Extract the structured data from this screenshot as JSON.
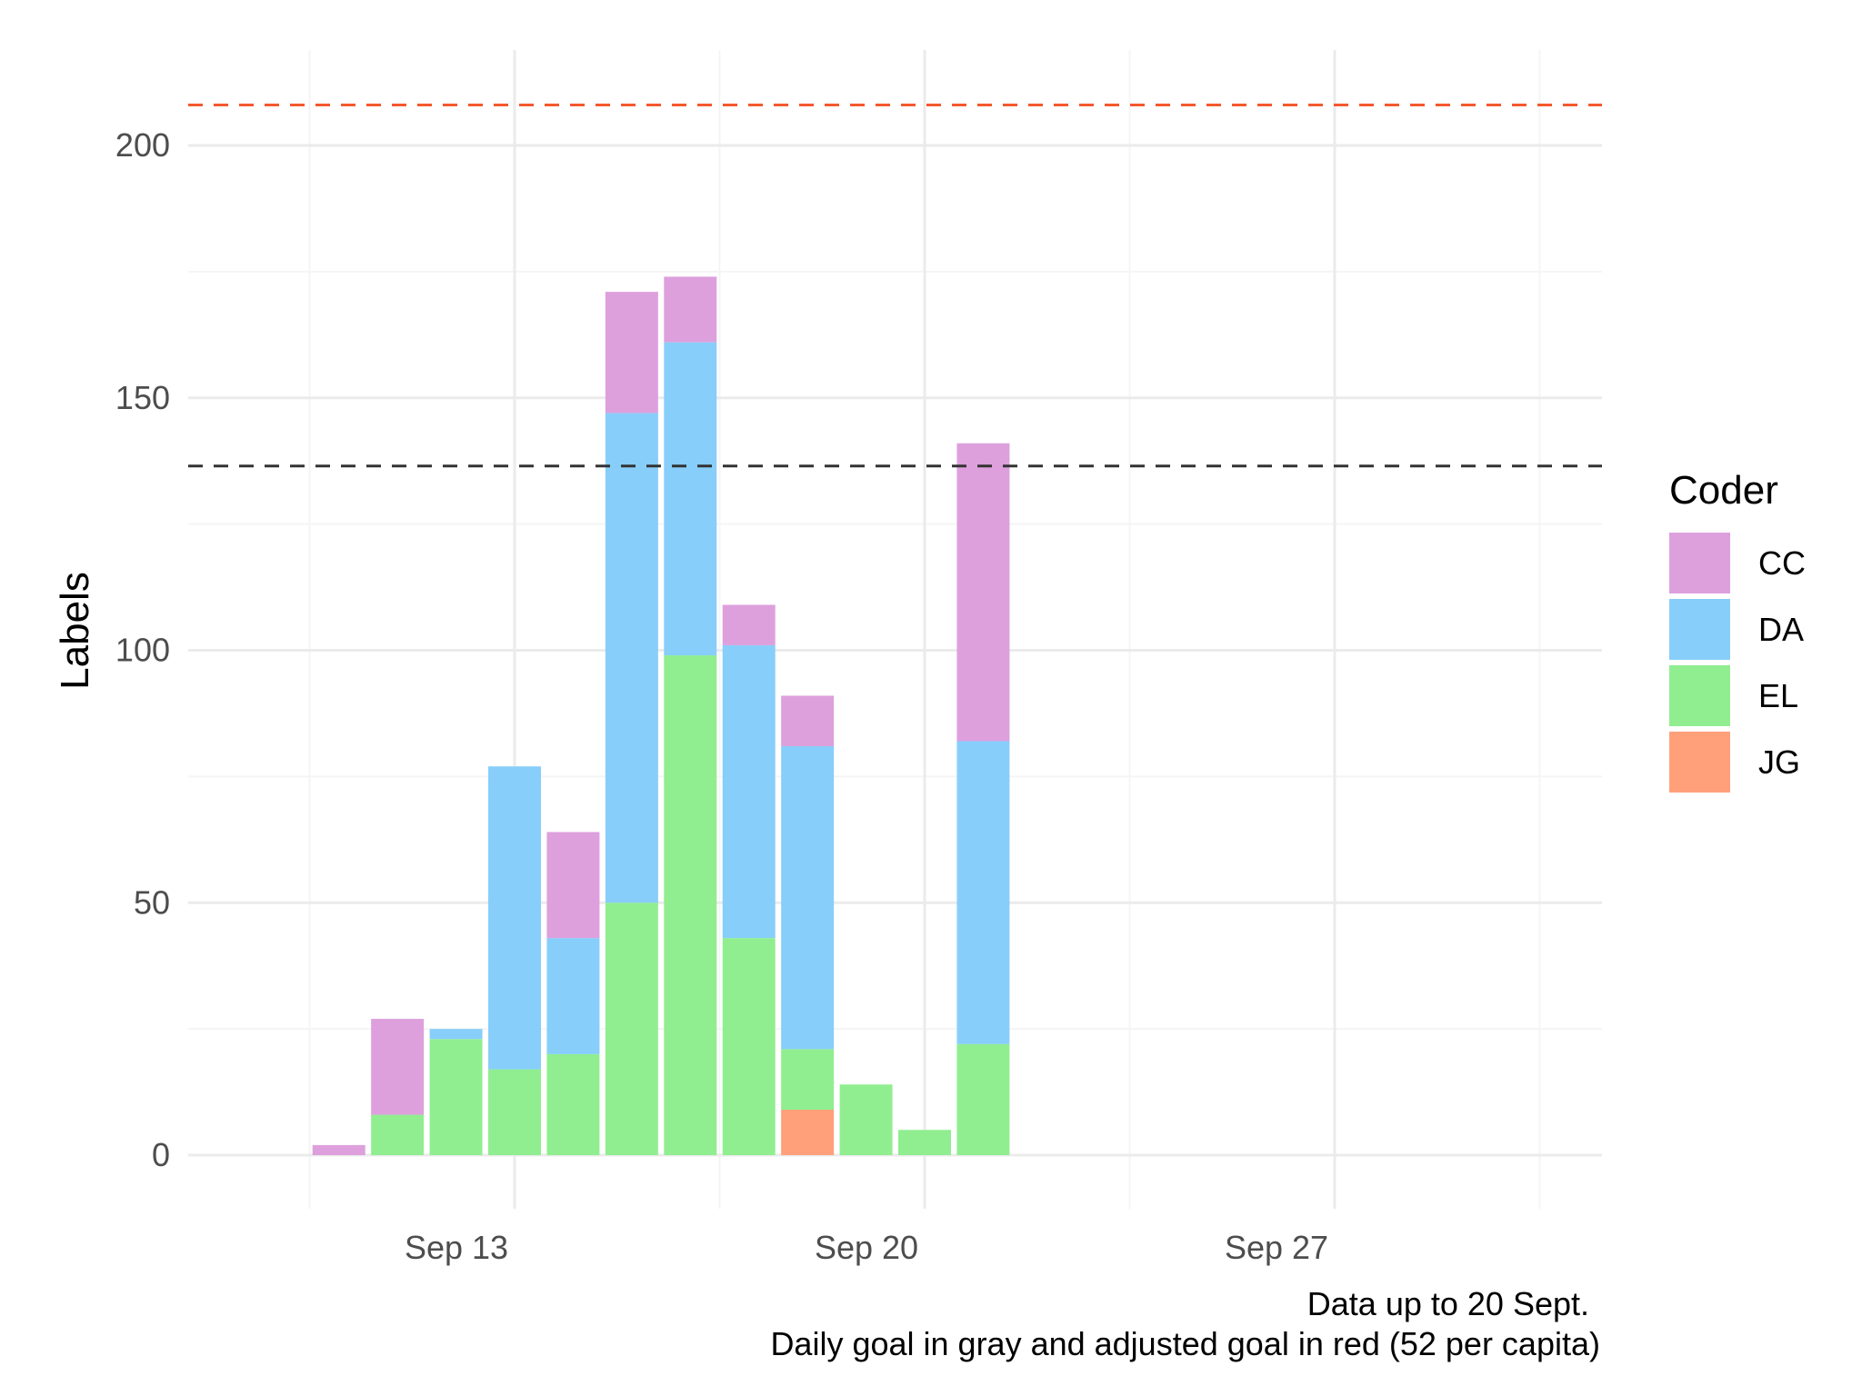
{
  "chart_data": {
    "type": "bar",
    "stacked": true,
    "ylabel": "Labels",
    "xlabel": "",
    "ylim": [
      -10,
      215
    ],
    "yticks": [
      0,
      50,
      100,
      150,
      200
    ],
    "x_axis": {
      "start_date": "2020-09-09",
      "end_date": "2020-09-30",
      "tick_dates": [
        "2020-09-13",
        "2020-09-20",
        "2020-09-27"
      ],
      "tick_labels": [
        "Sep 13",
        "Sep 20",
        "Sep 27"
      ]
    },
    "dates": [
      "2020-09-10",
      "2020-09-11",
      "2020-09-12",
      "2020-09-13",
      "2020-09-14",
      "2020-09-15",
      "2020-09-16",
      "2020-09-17",
      "2020-09-18",
      "2020-09-19",
      "2020-09-20",
      "2020-09-21"
    ],
    "series": [
      {
        "name": "JG",
        "color": "#FFA07A",
        "values": [
          0,
          0,
          0,
          0,
          0,
          0,
          0,
          0,
          9,
          0,
          0,
          0
        ]
      },
      {
        "name": "EL",
        "color": "#90EE90",
        "values": [
          0,
          8,
          23,
          17,
          20,
          50,
          99,
          43,
          12,
          14,
          5,
          22
        ]
      },
      {
        "name": "DA",
        "color": "#87CEFA",
        "values": [
          0,
          0,
          2,
          60,
          23,
          97,
          62,
          58,
          60,
          0,
          0,
          60
        ]
      },
      {
        "name": "CC",
        "color": "#DDA0DD",
        "values": [
          2,
          19,
          0,
          0,
          21,
          24,
          13,
          8,
          10,
          0,
          0,
          59
        ]
      }
    ],
    "reference_lines": [
      {
        "value": 208,
        "color": "#F4582E",
        "style": "dashed"
      },
      {
        "value": 136.5,
        "color": "#333333",
        "style": "dashed"
      }
    ],
    "legend": {
      "title": "Coder",
      "position": "right",
      "items": [
        {
          "name": "CC",
          "color": "#DDA0DD"
        },
        {
          "name": "DA",
          "color": "#87CEFA"
        },
        {
          "name": "EL",
          "color": "#90EE90"
        },
        {
          "name": "JG",
          "color": "#FFA07A"
        }
      ]
    },
    "caption": [
      "Data up to 20 Sept.",
      "Daily goal in gray and adjusted goal in red (52 per capita)"
    ],
    "grid": true
  }
}
